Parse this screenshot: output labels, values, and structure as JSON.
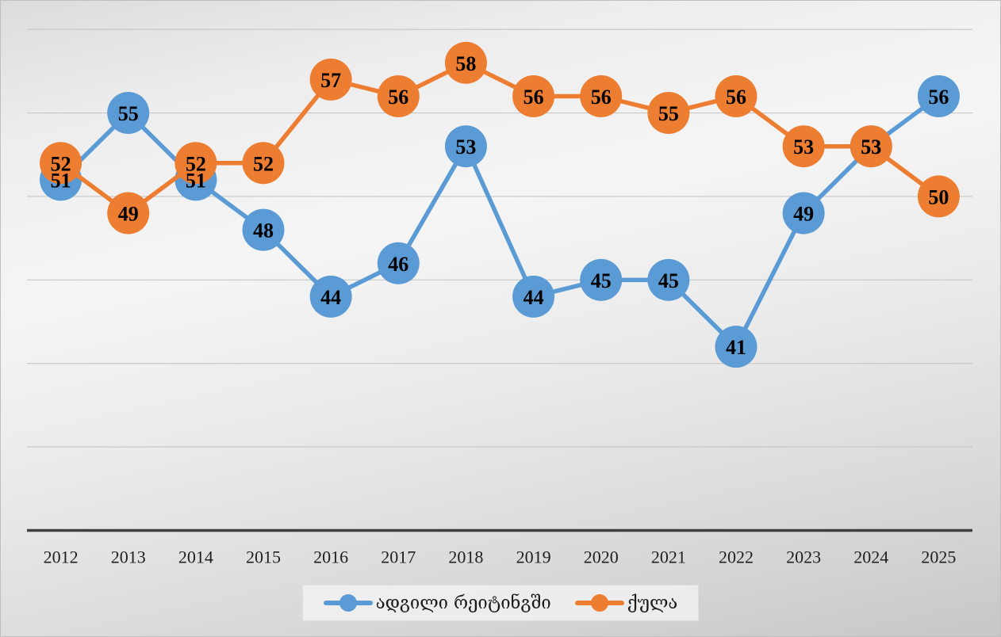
{
  "chart_data": {
    "type": "line",
    "title": "",
    "xlabel": "",
    "ylabel": "",
    "categories": [
      "2012",
      "2013",
      "2014",
      "2015",
      "2016",
      "2017",
      "2018",
      "2019",
      "2020",
      "2021",
      "2022",
      "2023",
      "2024",
      "2025"
    ],
    "series": [
      {
        "name": "ადგილი რეიტინგში",
        "color": "#5B9BD5",
        "values": [
          51,
          55,
          51,
          48,
          44,
          46,
          53,
          44,
          45,
          45,
          41,
          49,
          53,
          56
        ]
      },
      {
        "name": "ქულა",
        "color": "#ED7D31",
        "values": [
          52,
          49,
          52,
          52,
          57,
          56,
          58,
          56,
          56,
          55,
          56,
          53,
          53,
          50
        ]
      }
    ],
    "ylim": [
      30,
      60
    ],
    "grid": true,
    "grid_step": 5,
    "gridline_color": "#c8c8c8",
    "axis_color": "#3f3f3f",
    "data_label_color": "#000000",
    "tick_label_color": "#1f1f1f",
    "data_labels": true,
    "legend_position": "bottom",
    "marker_style": "circle"
  }
}
